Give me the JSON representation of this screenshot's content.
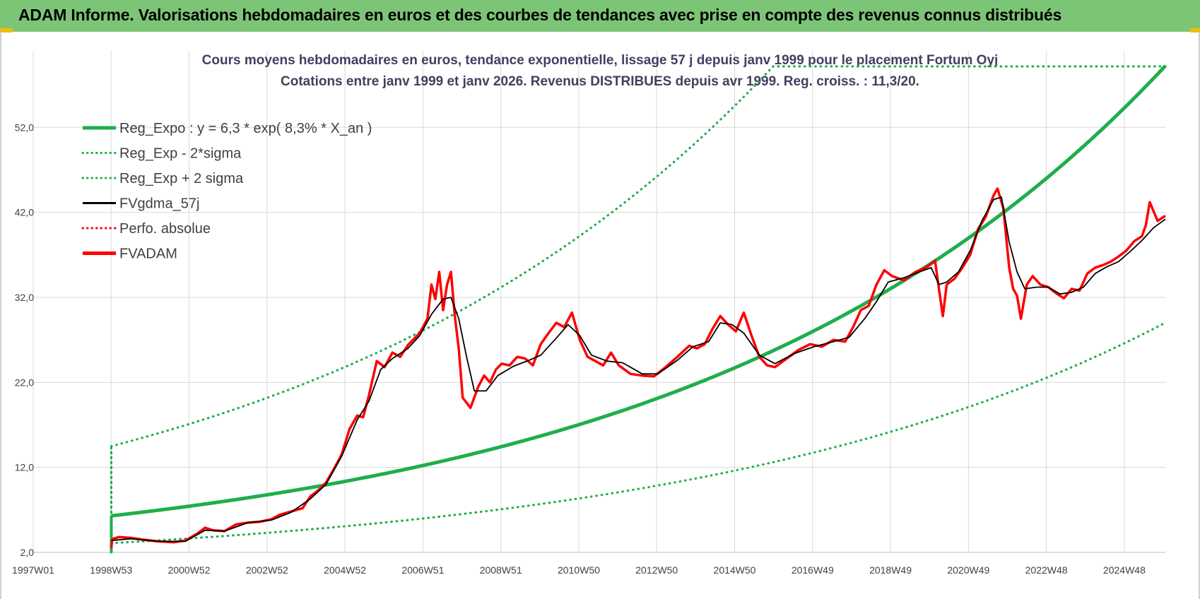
{
  "header": {
    "title": "ADAM Informe. Valorisations hebdomadaires en euros et des courbes de tendances avec prise en compte des revenus connus distribués"
  },
  "colors": {
    "banner": "#7dc576",
    "regression": "#1fae4b",
    "price": "#ff0000",
    "smoothed": "#000000",
    "grid": "#d9d9d9"
  },
  "chart_data": {
    "type": "line",
    "title_line1": "Cours moyens hebdomadaires en euros, tendance exponentielle, lissage 57 j depuis janv 1999 pour le placement Fortum Oyj",
    "title_line2": "Cotations entre janv 1999 et janv 2026. Revenus DISTRIBUES depuis avr 1999.  Reg. croiss. : 11,3/20.",
    "ylim": [
      2,
      61
    ],
    "y_ticks": [
      "2,0",
      "12,0",
      "22,0",
      "32,0",
      "42,0",
      "52,0"
    ],
    "x_tick_labels": [
      "1997W01",
      "1998W53",
      "2000W52",
      "2002W52",
      "2004W52",
      "2006W51",
      "2008W51",
      "2010W50",
      "2012W50",
      "2014W50",
      "2016W49",
      "2018W49",
      "2020W49",
      "2022W48",
      "2024W48"
    ],
    "x_range_years": [
      1997.0,
      2026.0
    ],
    "grid": true,
    "legend_position": "top-left",
    "legend": [
      {
        "label": "Reg_Expo : y = 6,3 * exp( 8,3% *  X_an )",
        "style": "solid-thick",
        "color": "#1fae4b"
      },
      {
        "label": "Reg_Exp - 2*sigma",
        "style": "dotted",
        "color": "#1fae4b"
      },
      {
        "label": "Reg_Exp + 2 sigma",
        "style": "dotted",
        "color": "#1fae4b"
      },
      {
        "label": "FVgdma_57j",
        "style": "solid",
        "color": "#000000"
      },
      {
        "label": "Perfo. absolue",
        "style": "dotted",
        "color": "#ff0000"
      },
      {
        "label": "FVADAM",
        "style": "solid-thick",
        "color": "#ff0000"
      }
    ],
    "regression": {
      "a": 6.3,
      "b": 0.083,
      "start_year": 1999.0,
      "end_year": 2026.0,
      "upper_factor": 2.3,
      "lower_factor": 0.49
    },
    "series": [
      {
        "name": "FVADAM",
        "x": [
          1999.0,
          1999.02,
          1999.05,
          1999.2,
          1999.5,
          1999.8,
          2000.2,
          2000.6,
          2000.9,
          2001.2,
          2001.4,
          2001.6,
          2001.9,
          2002.2,
          2002.5,
          2002.8,
          2003.1,
          2003.3,
          2003.6,
          2003.9,
          2004.1,
          2004.3,
          2004.5,
          2004.7,
          2004.9,
          2005.1,
          2005.3,
          2005.45,
          2005.6,
          2005.8,
          2006.0,
          2006.2,
          2006.4,
          2006.6,
          2006.9,
          2007.1,
          2007.2,
          2007.3,
          2007.4,
          2007.5,
          2007.6,
          2007.7,
          2007.8,
          2007.9,
          2008.0,
          2008.2,
          2008.4,
          2008.55,
          2008.7,
          2008.85,
          2009.0,
          2009.2,
          2009.4,
          2009.6,
          2009.8,
          2010.0,
          2010.2,
          2010.4,
          2010.6,
          2010.8,
          2011.0,
          2011.2,
          2011.4,
          2011.6,
          2011.8,
          2012.0,
          2012.3,
          2012.6,
          2012.9,
          2013.2,
          2013.5,
          2013.8,
          2014.0,
          2014.2,
          2014.4,
          2014.6,
          2014.8,
          2015.0,
          2015.2,
          2015.4,
          2015.6,
          2015.8,
          2016.0,
          2016.3,
          2016.6,
          2016.9,
          2017.2,
          2017.5,
          2017.8,
          2018.0,
          2018.2,
          2018.4,
          2018.6,
          2018.8,
          2019.0,
          2019.3,
          2019.6,
          2019.9,
          2020.1,
          2020.2,
          2020.3,
          2020.4,
          2020.6,
          2020.8,
          2021.0,
          2021.2,
          2021.4,
          2021.6,
          2021.7,
          2021.85,
          2022.0,
          2022.1,
          2022.2,
          2022.3,
          2022.45,
          2022.6,
          2022.8,
          2023.0,
          2023.2,
          2023.4,
          2023.6,
          2023.8,
          2024.0,
          2024.2,
          2024.4,
          2024.6,
          2024.8,
          2025.0,
          2025.2,
          2025.4,
          2025.5,
          2025.6,
          2025.8,
          2026.0
        ],
        "y": [
          2.5,
          3.4,
          3.6,
          3.8,
          3.7,
          3.5,
          3.3,
          3.2,
          3.4,
          4.2,
          4.9,
          4.6,
          4.5,
          5.3,
          5.5,
          5.6,
          5.9,
          6.4,
          6.8,
          7.2,
          8.6,
          9.3,
          10.2,
          11.8,
          13.5,
          16.5,
          18.1,
          17.9,
          20.5,
          24.5,
          23.8,
          25.5,
          25.0,
          26.4,
          27.8,
          29.5,
          33.5,
          31.8,
          35.0,
          30.5,
          33.5,
          35.0,
          29.8,
          26.0,
          20.2,
          19.0,
          21.5,
          22.8,
          22.0,
          23.5,
          24.2,
          24.0,
          25.0,
          24.8,
          24.0,
          26.5,
          27.8,
          29.0,
          28.5,
          30.2,
          27.0,
          25.0,
          24.5,
          24.0,
          25.5,
          24.0,
          23.0,
          22.8,
          22.7,
          23.8,
          25.0,
          26.3,
          26.0,
          26.5,
          28.3,
          29.8,
          28.8,
          28.0,
          30.2,
          27.5,
          25.0,
          24.0,
          23.8,
          24.8,
          25.8,
          26.5,
          26.2,
          27.0,
          26.8,
          28.5,
          30.5,
          31.0,
          33.5,
          35.2,
          34.5,
          34.0,
          35.0,
          35.6,
          36.3,
          33.0,
          29.8,
          33.5,
          34.2,
          35.5,
          37.0,
          40.0,
          41.5,
          44.0,
          44.8,
          42.5,
          35.5,
          33.0,
          32.2,
          29.5,
          33.5,
          34.5,
          33.5,
          33.2,
          32.5,
          31.9,
          33.0,
          32.8,
          34.8,
          35.5,
          35.8,
          36.2,
          36.8,
          37.5,
          38.6,
          39.2,
          40.5,
          43.2,
          41.0,
          41.6
        ]
      },
      {
        "name": "FVgdma_57j",
        "x": [
          1999.0,
          1999.5,
          2000.2,
          2000.9,
          2001.4,
          2001.9,
          2002.5,
          2003.1,
          2003.6,
          2004.1,
          2004.5,
          2004.9,
          2005.3,
          2005.6,
          2005.9,
          2006.2,
          2006.6,
          2006.9,
          2007.2,
          2007.5,
          2007.7,
          2007.9,
          2008.1,
          2008.3,
          2008.6,
          2008.9,
          2009.3,
          2009.7,
          2010.0,
          2010.4,
          2010.7,
          2011.0,
          2011.3,
          2011.7,
          2012.1,
          2012.6,
          2013.0,
          2013.5,
          2013.9,
          2014.3,
          2014.6,
          2014.9,
          2015.2,
          2015.6,
          2016.0,
          2016.5,
          2017.0,
          2017.5,
          2017.9,
          2018.3,
          2018.6,
          2018.9,
          2019.3,
          2019.7,
          2020.0,
          2020.2,
          2020.4,
          2020.7,
          2021.0,
          2021.3,
          2021.6,
          2021.8,
          2022.0,
          2022.2,
          2022.4,
          2022.7,
          2023.0,
          2023.3,
          2023.6,
          2023.9,
          2024.2,
          2024.5,
          2024.8,
          2025.1,
          2025.4,
          2025.7,
          2026.0
        ],
        "y": [
          3.4,
          3.6,
          3.3,
          3.3,
          4.6,
          4.5,
          5.5,
          5.8,
          6.7,
          8.3,
          10.0,
          13.3,
          17.6,
          19.8,
          23.5,
          24.8,
          26.0,
          27.5,
          30.0,
          31.8,
          32.0,
          29.5,
          25.0,
          21.0,
          21.0,
          22.8,
          23.9,
          24.6,
          25.2,
          27.2,
          28.8,
          27.5,
          25.2,
          24.5,
          24.3,
          23.0,
          23.0,
          24.6,
          26.2,
          26.8,
          29.0,
          28.8,
          27.8,
          25.2,
          24.2,
          25.4,
          26.2,
          26.8,
          27.3,
          29.5,
          31.5,
          33.8,
          34.3,
          35.0,
          35.5,
          33.5,
          33.8,
          35.0,
          37.5,
          41.0,
          43.5,
          43.8,
          38.5,
          35.0,
          33.0,
          33.2,
          33.2,
          32.4,
          32.6,
          33.2,
          34.8,
          35.6,
          36.2,
          37.4,
          38.7,
          40.2,
          41.2
        ]
      }
    ]
  }
}
